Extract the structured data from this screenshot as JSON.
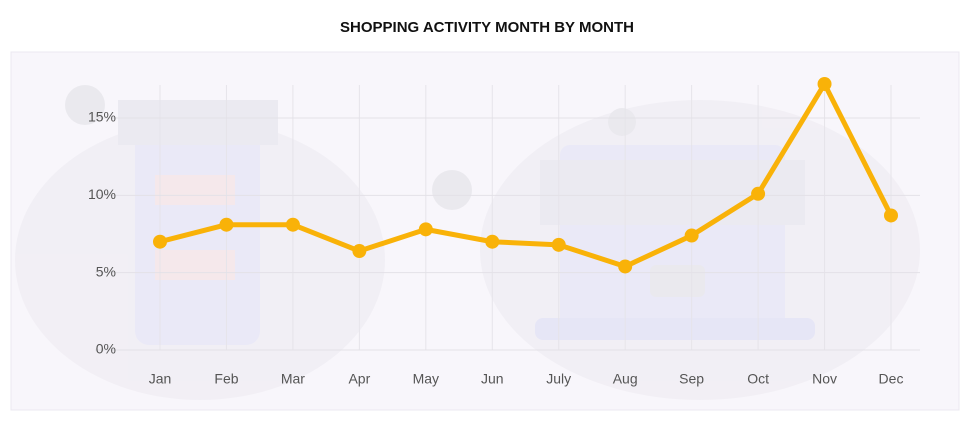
{
  "chart_data": {
    "type": "line",
    "title": "SHOPPING ACTIVITY MONTH BY MONTH",
    "categories": [
      "Jan",
      "Feb",
      "Mar",
      "Apr",
      "May",
      "Jun",
      "July",
      "Aug",
      "Sep",
      "Oct",
      "Nov",
      "Dec"
    ],
    "values": [
      7.0,
      8.1,
      8.1,
      6.4,
      7.8,
      7.0,
      6.8,
      5.4,
      7.4,
      10.1,
      17.2,
      8.7
    ],
    "color": "#f9b208",
    "ylim": [
      0,
      18
    ],
    "yticks": [
      {
        "value": 0,
        "label": "0%"
      },
      {
        "value": 5,
        "label": "5%"
      },
      {
        "value": 10,
        "label": "10%"
      },
      {
        "value": 15,
        "label": "15%"
      }
    ],
    "grid": true
  }
}
